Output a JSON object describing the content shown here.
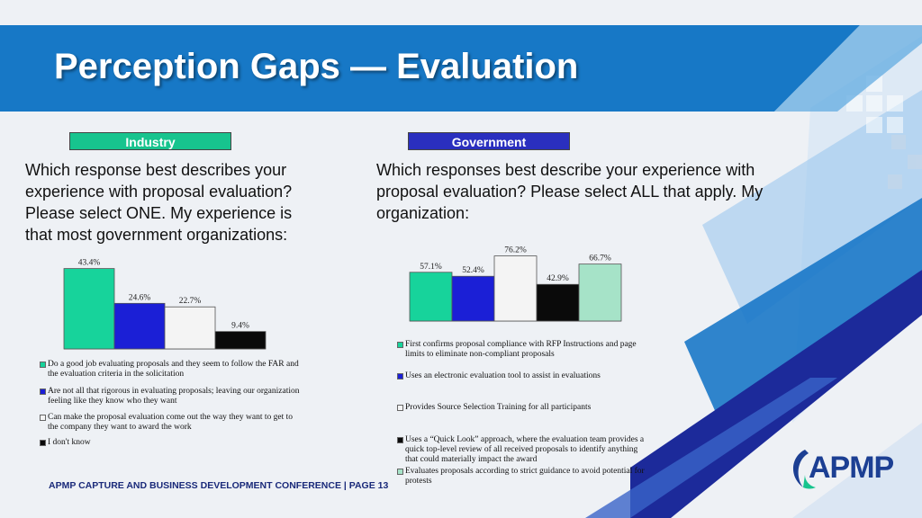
{
  "title": "Perception Gaps — Evaluation",
  "colors": {
    "title_band": "#1778c6",
    "industry_tag": "#17c48e",
    "government_tag": "#2a2fbf",
    "footer_text": "#1a2a7a",
    "logo_text": "#1c3f93"
  },
  "tags": {
    "industry": "Industry",
    "government": "Government"
  },
  "questions": {
    "industry": "Which response best describes your experience with proposal evaluation? Please select ONE. My experience is that most government organizations:",
    "government": "Which responses best describe your experience with proposal evaluation? Please select ALL that apply.  My organization:"
  },
  "chart_data": [
    {
      "type": "bar",
      "categories": [
        "Do a good job evaluating proposals and they seem to follow the FAR and the evaluation criteria in the solicitation",
        "Are not all that rigorous in evaluating proposals; leaving our organization feeling like they know who they want",
        "Can make the proposal evaluation come out the way they want to get to the company they want to award the work",
        "I don't know"
      ],
      "values": [
        43.4,
        24.6,
        22.7,
        9.4
      ],
      "data_labels": [
        "43.4%",
        "24.6%",
        "22.7%",
        "9.4%"
      ],
      "colors": [
        "#17d39b",
        "#1b1fd6",
        "#f4f4f4",
        "#0a0a0a"
      ],
      "ylim": [
        0,
        50
      ],
      "grid": false,
      "legend_placement": "bottom"
    },
    {
      "type": "bar",
      "categories": [
        "First confirms proposal compliance with RFP Instructions and page limits to eliminate non-compliant proposals",
        "Uses an electronic evaluation tool to assist in evaluations",
        "Provides Source Selection Training for all participants",
        "Uses a “Quick Look” approach, where the evaluation team provides a quick top-level review of all received proposals to identify anything that could materially impact the award",
        "Evaluates proposals according to strict guidance to avoid potential for protests"
      ],
      "values": [
        57.1,
        52.4,
        76.2,
        42.9,
        66.7
      ],
      "data_labels": [
        "57.1%",
        "52.4%",
        "76.2%",
        "42.9%",
        "66.7%"
      ],
      "colors": [
        "#17d39b",
        "#1b1fd6",
        "#f4f4f4",
        "#0a0a0a",
        "#a6e3c8"
      ],
      "ylim": [
        0,
        100
      ],
      "grid": false,
      "legend_placement": "bottom"
    }
  ],
  "footer": "APMP CAPTURE AND BUSINESS DEVELOPMENT CONFERENCE | PAGE 13",
  "logo": {
    "text": "APMP",
    "icon": "apmp-swoosh-icon"
  }
}
